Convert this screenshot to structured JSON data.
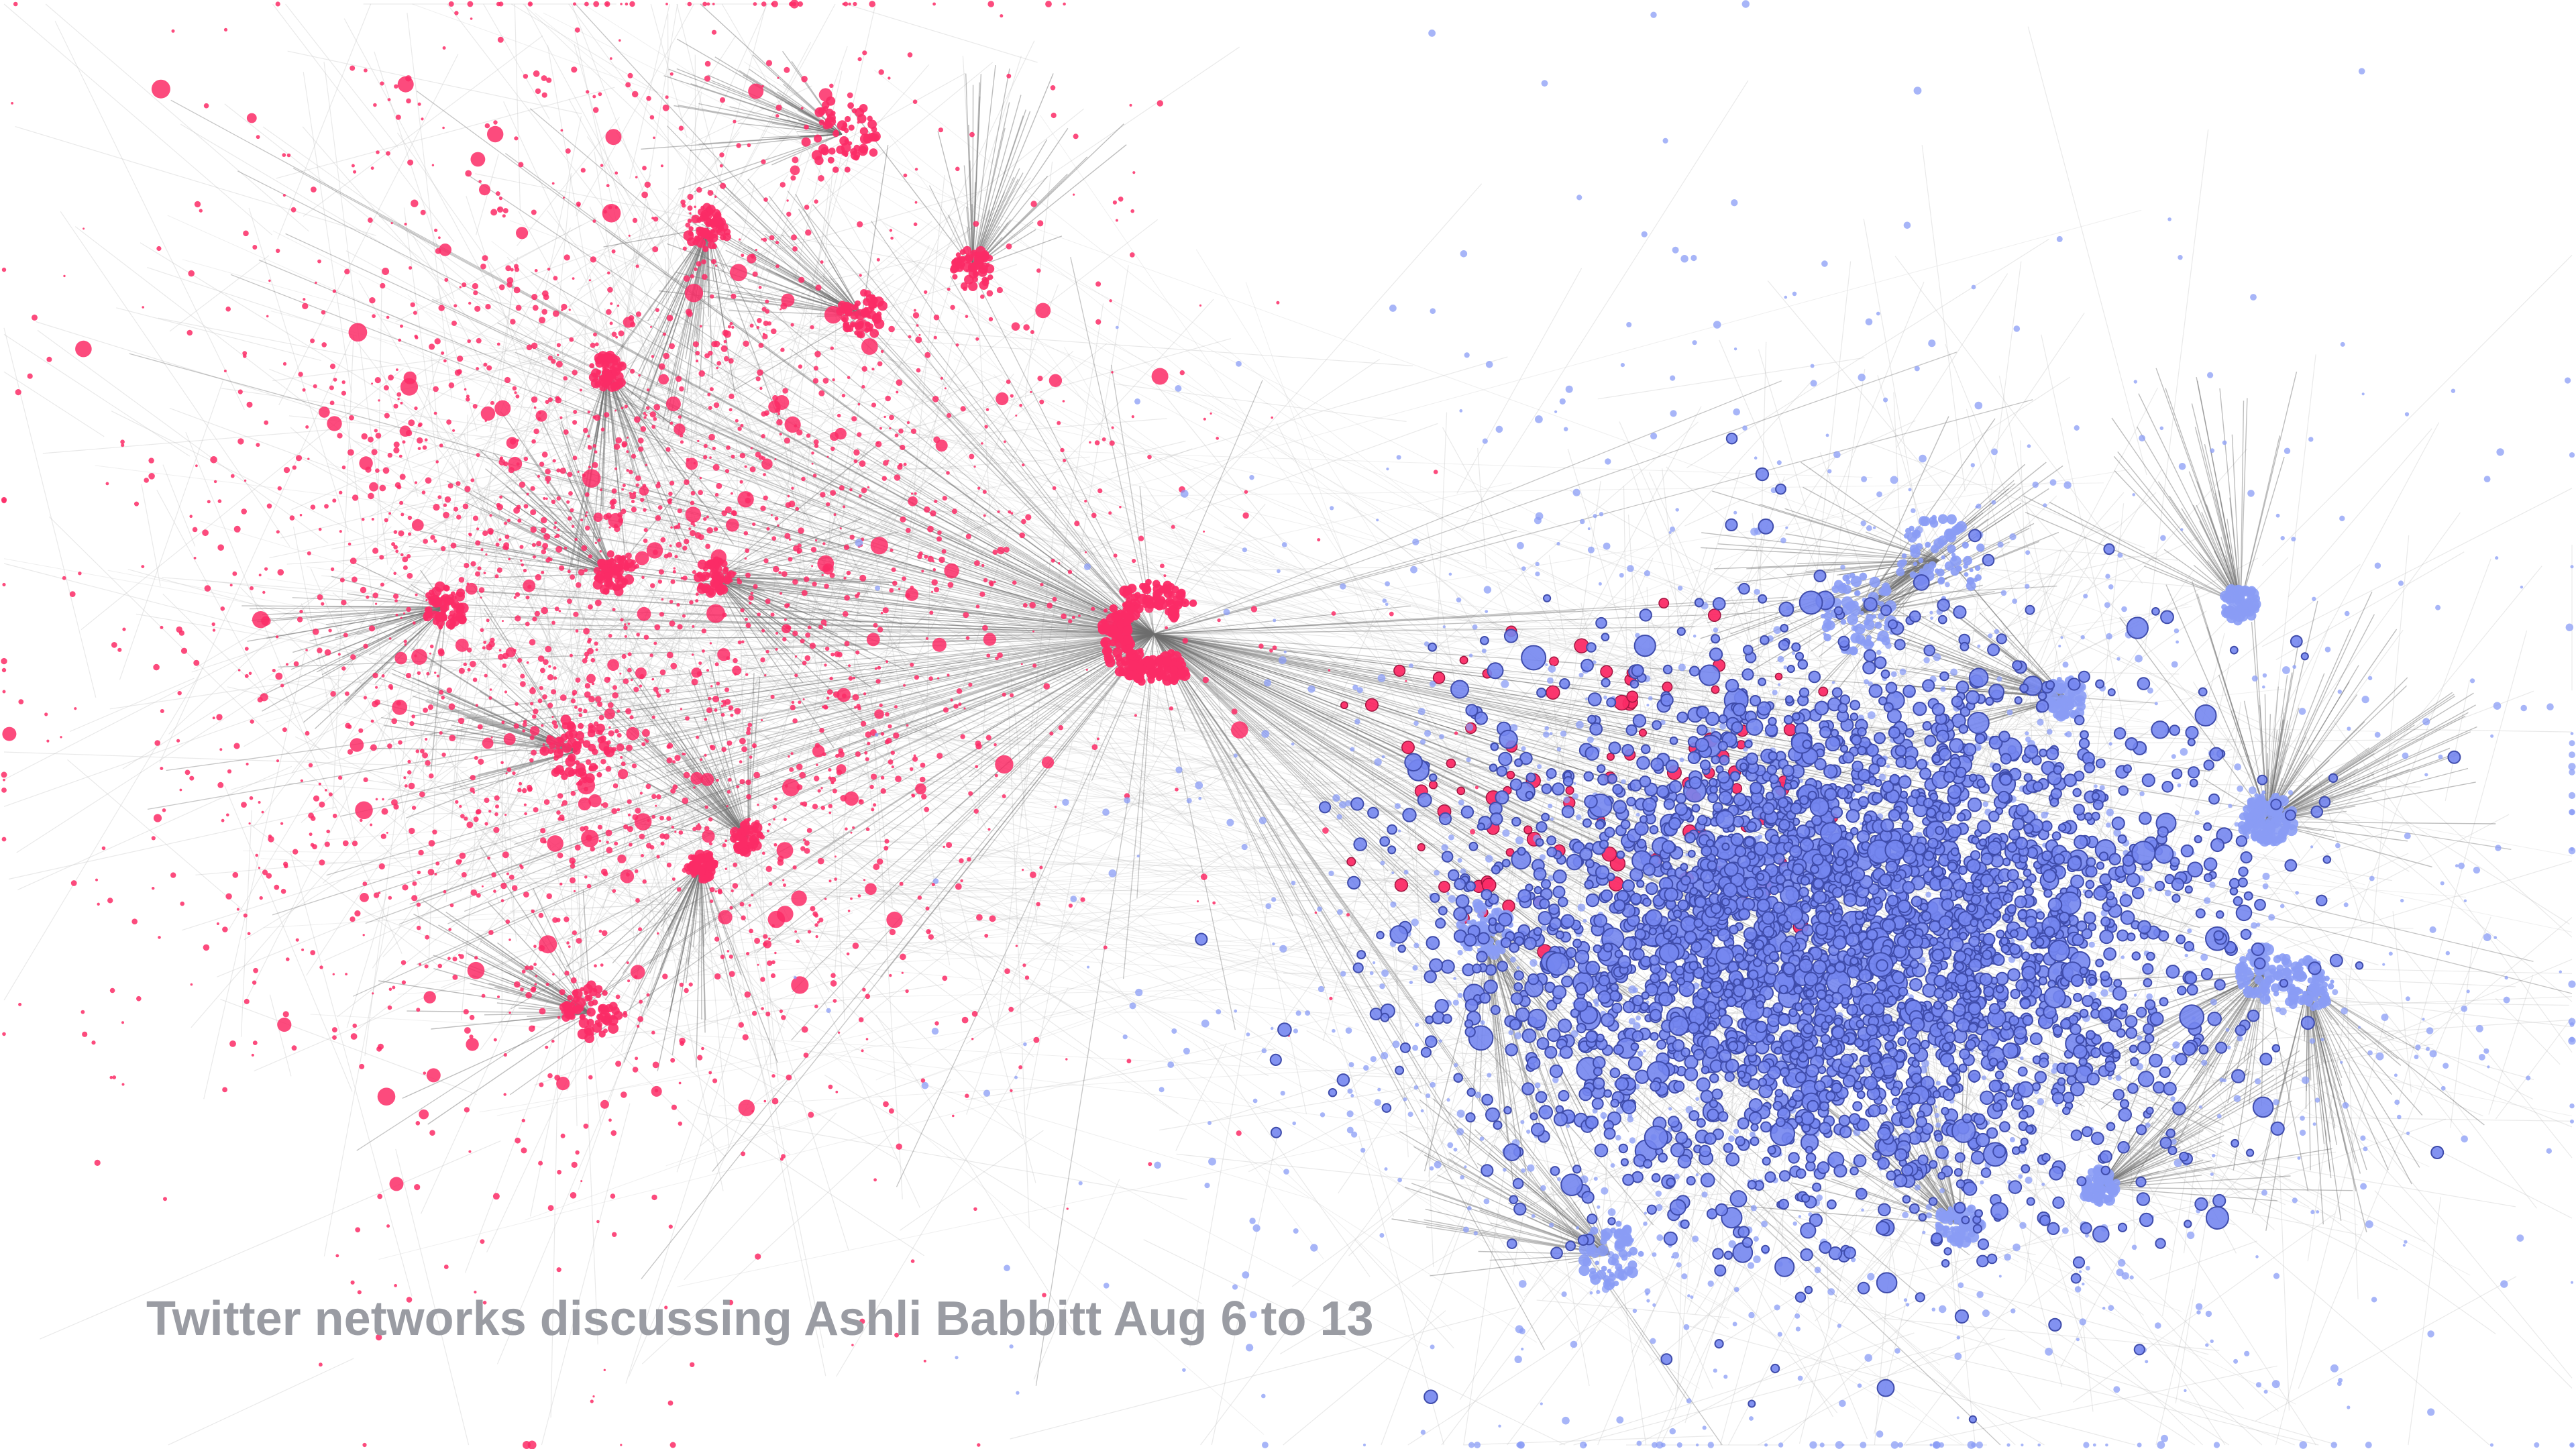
{
  "caption": "Twitter networks discussing Ashli Babbitt Aug 6 to 13",
  "colors": {
    "background": "#ffffff",
    "caption_text": "#9a9ca3",
    "red_cluster": "#fb2b66",
    "blue_cluster": "#7486f0",
    "blue_cluster_halo": "#8a9cf5",
    "blue_node_outline": "#3f4cab",
    "edge_light": "#bfbfbf",
    "edge_dark": "#6e6e6e"
  },
  "clusters": [
    {
      "name": "red",
      "color_key": "red_cluster"
    },
    {
      "name": "blue",
      "color_key": "blue_cluster"
    }
  ]
}
